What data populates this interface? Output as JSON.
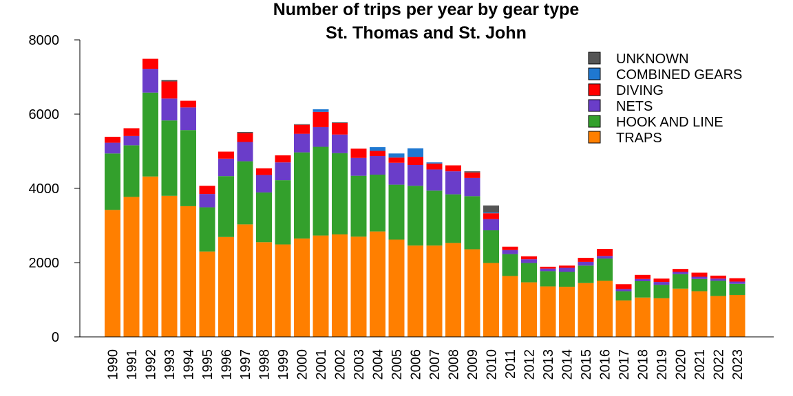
{
  "chart_data": {
    "type": "bar",
    "stacked": true,
    "title": "Number of trips per year by gear type",
    "subtitle": "St. Thomas and St. John",
    "ylim": [
      0,
      8000
    ],
    "yticks": [
      "0",
      "2000",
      "4000",
      "6000",
      "8000"
    ],
    "categories": [
      "1990",
      "1991",
      "1992",
      "1993",
      "1994",
      "1995",
      "1996",
      "1997",
      "1998",
      "1999",
      "2000",
      "2001",
      "2002",
      "2003",
      "2004",
      "2005",
      "2006",
      "2007",
      "2008",
      "2009",
      "2010",
      "2011",
      "2012",
      "2013",
      "2014",
      "2015",
      "2016",
      "2017",
      "2018",
      "2019",
      "2020",
      "2021",
      "2022",
      "2023"
    ],
    "legend_position": "top-right",
    "series": [
      {
        "name": "TRAPS",
        "color": "#FF7F00",
        "values": [
          3420,
          3770,
          4320,
          3800,
          3520,
          2300,
          2690,
          3030,
          2550,
          2490,
          2650,
          2730,
          2760,
          2700,
          2840,
          2620,
          2460,
          2460,
          2530,
          2360,
          1990,
          1640,
          1470,
          1360,
          1350,
          1450,
          1510,
          980,
          1060,
          1040,
          1300,
          1230,
          1100,
          1130
        ]
      },
      {
        "name": "HOOK AND LINE",
        "color": "#33A02C",
        "values": [
          1520,
          1390,
          2260,
          2030,
          2050,
          1190,
          1640,
          1700,
          1340,
          1730,
          2320,
          2390,
          2190,
          1640,
          1530,
          1480,
          1610,
          1480,
          1310,
          1430,
          880,
          590,
          520,
          410,
          400,
          470,
          600,
          250,
          440,
          360,
          390,
          330,
          410,
          300
        ]
      },
      {
        "name": "NETS",
        "color": "#6A3DC9",
        "values": [
          290,
          250,
          640,
          590,
          610,
          360,
          470,
          520,
          470,
          480,
          500,
          530,
          500,
          480,
          500,
          590,
          560,
          570,
          620,
          490,
          300,
          110,
          100,
          70,
          110,
          100,
          70,
          60,
          60,
          80,
          60,
          60,
          60,
          60
        ]
      },
      {
        "name": "DIVING",
        "color": "#FF0000",
        "values": [
          160,
          210,
          270,
          460,
          180,
          220,
          190,
          240,
          180,
          190,
          240,
          410,
          310,
          250,
          140,
          140,
          220,
          160,
          160,
          150,
          160,
          90,
          80,
          50,
          60,
          110,
          190,
          130,
          110,
          90,
          80,
          110,
          80,
          90
        ]
      },
      {
        "name": "COMBINED GEARS",
        "color": "#1F78D1",
        "values": [
          0,
          0,
          0,
          0,
          0,
          0,
          0,
          0,
          0,
          0,
          0,
          70,
          0,
          0,
          100,
          110,
          230,
          30,
          0,
          0,
          20,
          0,
          0,
          0,
          0,
          0,
          0,
          0,
          0,
          0,
          0,
          0,
          0,
          0
        ]
      },
      {
        "name": "UNKNOWN",
        "color": "#555555",
        "values": [
          0,
          0,
          0,
          40,
          0,
          0,
          0,
          30,
          0,
          0,
          20,
          0,
          20,
          0,
          0,
          0,
          0,
          0,
          0,
          30,
          190,
          0,
          0,
          0,
          0,
          0,
          0,
          0,
          0,
          0,
          0,
          0,
          0,
          0
        ]
      }
    ],
    "legend_order": [
      "UNKNOWN",
      "COMBINED GEARS",
      "DIVING",
      "NETS",
      "HOOK AND LINE",
      "TRAPS"
    ]
  }
}
